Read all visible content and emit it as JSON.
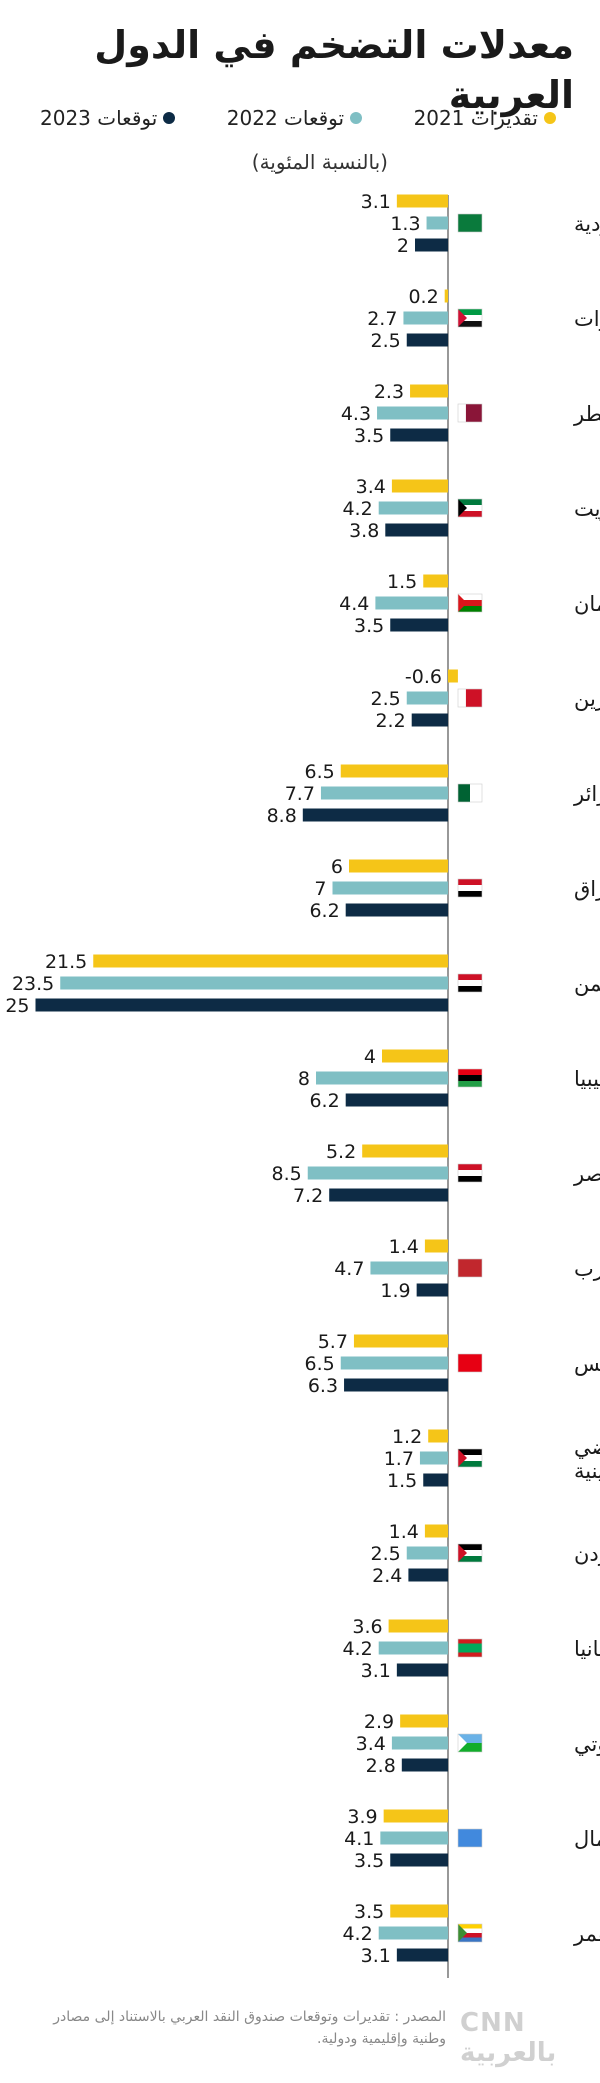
{
  "title": "معدلات التضخم في الدول العربية",
  "subtitle": "(بالنسبة المئوية)",
  "legend": [
    {
      "name": "تقديرات 2021",
      "color": "#f5c518"
    },
    {
      "name": "توقعات 2022",
      "color": "#7fbfc4"
    },
    {
      "name": "توقعات 2023",
      "color": "#0d2b45"
    }
  ],
  "source": "المصدر : تقديرات وتوقعات صندوق النقد العربي بالاستناد إلى مصادر وطنية وإقليمية ودولية.",
  "logo": "CNN بالعربية",
  "chart_data": {
    "type": "bar",
    "orientation": "horizontal",
    "grid": false,
    "categories": [
      "السعودية",
      "الإمارات",
      "قطر",
      "الكويت",
      "عمان",
      "البحرين",
      "الجزائر",
      "العراق",
      "اليمن",
      "ليبيا",
      "مصر",
      "المغرب",
      "تونس",
      "الأراضي الفلسطينية",
      "الأردن",
      "موريتانيا",
      "جيبوتي",
      "الصومال",
      "جزر القمر"
    ],
    "series": [
      {
        "name": "تقديرات 2021",
        "color": "#f5c518",
        "values": [
          3.1,
          0.2,
          2.3,
          3.4,
          1.5,
          -0.6,
          6.5,
          6,
          21.5,
          4,
          5.2,
          1.4,
          5.7,
          1.2,
          1.4,
          3.6,
          2.9,
          3.9,
          3.5
        ]
      },
      {
        "name": "توقعات 2022",
        "color": "#7fbfc4",
        "values": [
          1.3,
          2.7,
          4.3,
          4.2,
          4.4,
          2.5,
          7.7,
          7,
          23.5,
          8,
          8.5,
          4.7,
          6.5,
          1.7,
          2.5,
          4.2,
          3.4,
          4.1,
          4.2
        ]
      },
      {
        "name": "توقعات 2023",
        "color": "#0d2b45",
        "values": [
          2,
          2.5,
          3.5,
          3.8,
          3.5,
          2.2,
          8.8,
          6.2,
          25,
          6.2,
          7.2,
          1.9,
          6.3,
          1.5,
          2.4,
          3.1,
          2.8,
          3.5,
          3.1
        ]
      }
    ],
    "value_labels": [
      [
        "3.1",
        "1.3",
        "2"
      ],
      [
        "0.2",
        "2.7",
        "2.5"
      ],
      [
        "2.3",
        "4.3",
        "3.5"
      ],
      [
        "3.4",
        "4.2",
        "3.8"
      ],
      [
        "1.5",
        "4.4",
        "3.5"
      ],
      [
        "-0.6",
        "2.5",
        "2.2"
      ],
      [
        "6.5",
        "7.7",
        "8.8"
      ],
      [
        "6",
        "7",
        "6.2"
      ],
      [
        "21.5",
        "23.5",
        "25"
      ],
      [
        "4",
        "8",
        "6.2"
      ],
      [
        "5.2",
        "8.5",
        "7.2"
      ],
      [
        "1.4",
        "4.7",
        "1.9"
      ],
      [
        "5.7",
        "6.5",
        "6.3"
      ],
      [
        "1.2",
        "1.7",
        "1.5"
      ],
      [
        "1.4",
        "2.5",
        "2.4"
      ],
      [
        "3.6",
        "4.2",
        "3.1"
      ],
      [
        "2.9",
        "3.4",
        "2.8"
      ],
      [
        "3.9",
        "4.1",
        "3.5"
      ],
      [
        "3.5",
        "4.2",
        "3.1"
      ]
    ],
    "flags": [
      {
        "type": "h",
        "colors": [
          "#0a7a3c"
        ]
      },
      {
        "type": "h",
        "colors": [
          "#009a44",
          "#ffffff",
          "#111111"
        ],
        "left": "#d21034"
      },
      {
        "type": "hostL",
        "colors": [
          "#ffffff",
          "#8a1538"
        ]
      },
      {
        "type": "h",
        "colors": [
          "#007a3d",
          "#ffffff",
          "#ce1126"
        ],
        "left": "#000000"
      },
      {
        "type": "h",
        "colors": [
          "#ffffff",
          "#db161b",
          "#008000"
        ],
        "left": "#db161b"
      },
      {
        "type": "hostL",
        "colors": [
          "#ffffff",
          "#ce1126"
        ]
      },
      {
        "type": "v",
        "colors": [
          "#006233",
          "#ffffff"
        ]
      },
      {
        "type": "h",
        "colors": [
          "#ce1126",
          "#ffffff",
          "#000000"
        ]
      },
      {
        "type": "h",
        "colors": [
          "#ce1126",
          "#ffffff",
          "#000000"
        ]
      },
      {
        "type": "h",
        "colors": [
          "#e70013",
          "#000000",
          "#239e46"
        ]
      },
      {
        "type": "h",
        "colors": [
          "#ce1126",
          "#ffffff",
          "#000000"
        ]
      },
      {
        "type": "h",
        "colors": [
          "#c1272d"
        ]
      },
      {
        "type": "h",
        "colors": [
          "#e70013"
        ]
      },
      {
        "type": "h",
        "colors": [
          "#000000",
          "#ffffff",
          "#007a3d"
        ],
        "left": "#ce1126"
      },
      {
        "type": "h",
        "colors": [
          "#000000",
          "#ffffff",
          "#007a3d"
        ],
        "left": "#ce1126"
      },
      {
        "type": "h",
        "colors": [
          "#d01c1f",
          "#00a95c",
          "#00a95c",
          "#d01c1f"
        ]
      },
      {
        "type": "h",
        "colors": [
          "#6ab2e7",
          "#12ad2b"
        ],
        "left": "#ffffff"
      },
      {
        "type": "h",
        "colors": [
          "#4189dd"
        ]
      },
      {
        "type": "h",
        "colors": [
          "#ffd100",
          "#ffffff",
          "#ce1126",
          "#3a75c4"
        ],
        "left": "#3d8e33"
      }
    ]
  }
}
